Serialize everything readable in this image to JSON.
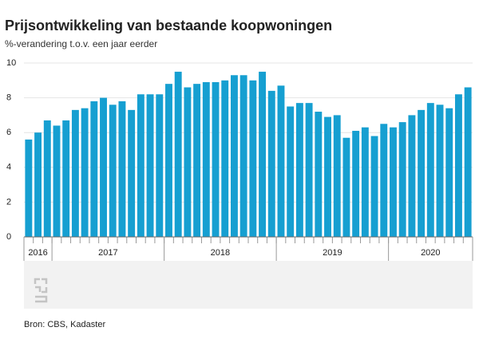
{
  "chart_data": {
    "type": "bar",
    "title": "Prijsontwikkeling van bestaande koopwoningen",
    "subtitle": "%-verandering t.o.v. een jaar eerder",
    "source": "Bron: CBS, Kadaster",
    "color": "#169fd1",
    "categories": [
      null,
      null,
      null,
      null,
      null,
      null,
      null,
      null,
      null,
      null,
      null,
      null,
      null,
      null,
      null,
      null,
      null,
      null,
      null,
      null,
      null,
      null,
      null,
      null,
      null,
      null,
      null,
      null,
      null,
      null,
      null,
      null,
      null,
      null,
      null,
      null,
      null,
      null,
      null,
      null,
      null,
      null,
      null,
      null,
      null,
      null,
      null,
      null
    ],
    "values": [
      5.6,
      6.0,
      6.7,
      6.4,
      6.7,
      7.3,
      7.4,
      7.8,
      8.0,
      7.6,
      7.8,
      7.3,
      8.2,
      8.2,
      8.2,
      8.8,
      9.5,
      8.6,
      8.8,
      8.9,
      8.9,
      9.0,
      9.3,
      9.3,
      9.0,
      9.5,
      8.4,
      8.7,
      7.5,
      7.7,
      7.7,
      7.2,
      6.9,
      7.0,
      5.7,
      6.1,
      6.3,
      5.8,
      6.5,
      6.3,
      6.6,
      7.0,
      7.3,
      7.7,
      7.6,
      7.4,
      8.2,
      8.6
    ],
    "year_groups": [
      {
        "label": "2016",
        "months": 3
      },
      {
        "label": "2017",
        "months": 12
      },
      {
        "label": "2018",
        "months": 12
      },
      {
        "label": "2019",
        "months": 12
      },
      {
        "label": "2020",
        "months": 9
      }
    ],
    "ylim": [
      0,
      10
    ],
    "yticks": [
      0,
      2,
      4,
      6,
      8,
      10
    ],
    "grid": true
  }
}
